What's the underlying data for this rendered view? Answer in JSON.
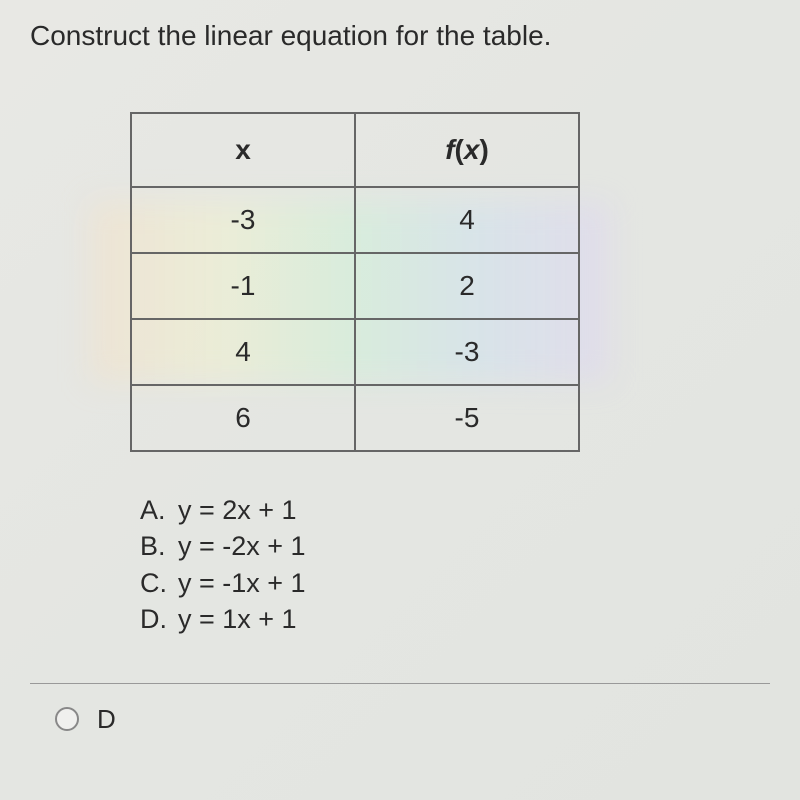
{
  "prompt": "Construct the linear equation for the table.",
  "table": {
    "headers": {
      "col1": "x",
      "col2_f": "f",
      "col2_open": "(",
      "col2_x": "x",
      "col2_close": ")"
    },
    "rows": [
      {
        "x": "-3",
        "fx": "4"
      },
      {
        "x": "-1",
        "fx": "2"
      },
      {
        "x": "4",
        "fx": "-3"
      },
      {
        "x": "6",
        "fx": "-5"
      }
    ],
    "border_color": "#666666",
    "cell_fontsize": 28
  },
  "choices": [
    {
      "letter": "A.",
      "eq": "y = 2x + 1"
    },
    {
      "letter": "B.",
      "eq": "y = -2x + 1"
    },
    {
      "letter": "C.",
      "eq": "y = -1x + 1"
    },
    {
      "letter": "D.",
      "eq": "y = 1x + 1"
    }
  ],
  "selected": {
    "label": "D"
  },
  "colors": {
    "background": "#e6e6e2",
    "text": "#2a2a2a",
    "border": "#666666",
    "divider": "#999999"
  }
}
